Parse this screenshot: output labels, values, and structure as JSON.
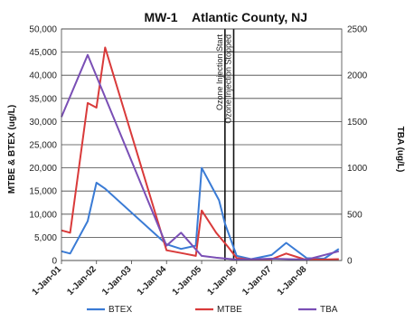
{
  "chart_data": {
    "type": "line",
    "title": "MW-1",
    "subtitle": "Atlantic County, NJ",
    "ylabel_left": "MTBE & BTEX (ug/L)",
    "ylabel_right": "TBA (ug/L)",
    "ylim_left": [
      0,
      50000
    ],
    "ylim_right": [
      0,
      2500
    ],
    "yticks_left": [
      "0",
      "5,000",
      "10,000",
      "15,000",
      "20,000",
      "25,000",
      "30,000",
      "35,000",
      "40,000",
      "45,000",
      "50,000"
    ],
    "yticks_right": [
      "0",
      "500",
      "1000",
      "1500",
      "2000",
      "2500"
    ],
    "xticks": [
      "1-Jan-01",
      "1-Jan-02",
      "1-Jan-03",
      "1-Jan-04",
      "1-Jan-05",
      "1-Jan-06",
      "1-Jan-07",
      "1-Jan-08"
    ],
    "xlim": [
      "2001-01-01",
      "2008-12-31"
    ],
    "grid": "horizontal",
    "series": [
      {
        "name": "BTEX",
        "color": "#3a7bd5",
        "axis": "left",
        "x": [
          "2001-01-01",
          "2001-04-01",
          "2001-10-01",
          "2002-01-01",
          "2002-04-01",
          "2004-01-01",
          "2004-06-01",
          "2004-11-01",
          "2005-01-01",
          "2005-07-01",
          "2005-09-01",
          "2006-01-01",
          "2006-06-01",
          "2007-01-01",
          "2007-06-01",
          "2007-12-01",
          "2008-01-01",
          "2008-07-01",
          "2008-12-01"
        ],
        "values": [
          2000,
          1500,
          8500,
          16800,
          15500,
          3500,
          2500,
          3200,
          20000,
          13000,
          8000,
          1000,
          300,
          1200,
          3800,
          1000,
          500,
          400,
          2500
        ]
      },
      {
        "name": "MTBE",
        "color": "#d93a3a",
        "axis": "left",
        "x": [
          "2001-01-01",
          "2001-04-01",
          "2001-10-01",
          "2002-01-01",
          "2002-04-01",
          "2004-01-01",
          "2004-07-01",
          "2004-11-01",
          "2005-01-01",
          "2005-06-01",
          "2005-10-01",
          "2006-01-01",
          "2006-06-01",
          "2007-01-01",
          "2007-06-01",
          "2007-12-01",
          "2008-06-01",
          "2008-12-01"
        ],
        "values": [
          6500,
          6000,
          34000,
          33000,
          46000,
          2200,
          1500,
          1000,
          10800,
          6000,
          3000,
          500,
          200,
          300,
          1500,
          300,
          200,
          300
        ]
      },
      {
        "name": "TBA",
        "color": "#7a4fb5",
        "axis": "right",
        "x": [
          "2001-01-01",
          "2001-10-01",
          "2004-01-01",
          "2004-06-01",
          "2004-11-01",
          "2005-01-01",
          "2005-06-01",
          "2006-01-01",
          "2007-01-01",
          "2008-01-01",
          "2008-12-01"
        ],
        "values": [
          1550,
          2220,
          160,
          300,
          120,
          50,
          30,
          10,
          20,
          10,
          100
        ]
      }
    ],
    "annotations": [
      {
        "text": "Ozone Injection Start",
        "x": "2005-09-01"
      },
      {
        "text": "Ozone Injection Stopped",
        "x": "2005-12-01"
      }
    ],
    "legend_position": "bottom"
  }
}
